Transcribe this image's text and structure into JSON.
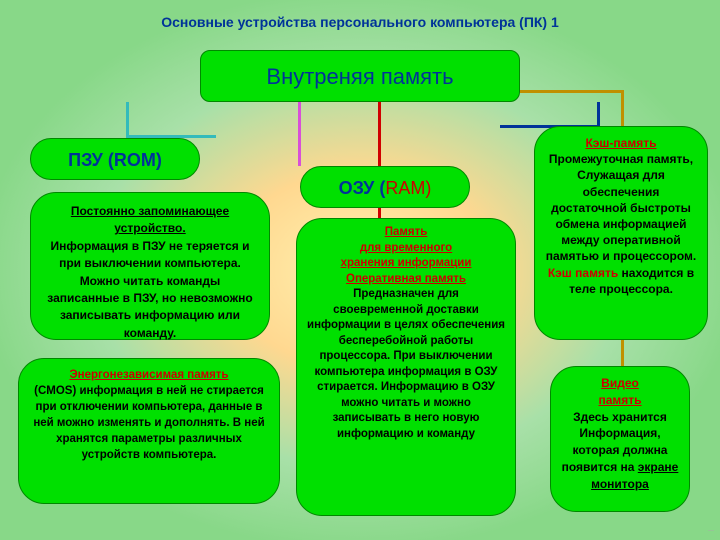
{
  "colors": {
    "box_bg": "#00e000",
    "box_border": "#008800",
    "title": "#003399",
    "line_teal": "#33bbbb",
    "line_magenta": "#d84fd8",
    "line_red": "#d00000",
    "line_blue": "#003399",
    "line_ochre": "#c09000",
    "bg_inner": "#fff2b0",
    "bg_mid": "#ffd890",
    "bg_outer": "#88d888"
  },
  "title": "Основные устройства персонального компьютера (ПК)  1",
  "main": "Внутреняя память",
  "rom": {
    "head": "ПЗУ  (ROM)",
    "u": "Постоянно запоминающее устройство.",
    "t": "Информация в ПЗУ не теряется и при выключении компьютера. Можно читать команды записанные в ПЗУ, но невозможно записывать информацию или команду."
  },
  "cmos": {
    "u": "Энергонезависимая память",
    "t": "(CMOS) информация в ней не стирается при отключении компьютера, данные в ней можно изменять и дополнять. В ней хранятся параметры различных устройств компьютера."
  },
  "ram": {
    "h1": "ОЗУ  (",
    "h2": "RAM)",
    "u1": "Память",
    "u2": "для временного",
    "u3": " хранения информации",
    "u4": "Оперативная память",
    "t": "Предназначен для своевременной доставки информации в целях обеспечения бесперебойной работы процессора. При выключении компьютера информация в ОЗУ стирается. Информацию в ОЗУ можно читать и можно записывать в него новую информацию и команду"
  },
  "cache": {
    "u": "Кэш-память",
    "t1": "Промежуточная память, Служащая для обеспечения достаточной быстроты обмена информацией между оперативной памятью и процессором.",
    "r": "Кэш память",
    "t2": "находится в теле процессора."
  },
  "video": {
    "u1": "Видео",
    "u2": "память",
    "t": "Здесь хранится Информация, которая должна появится на",
    "u3": "экране монитора"
  }
}
